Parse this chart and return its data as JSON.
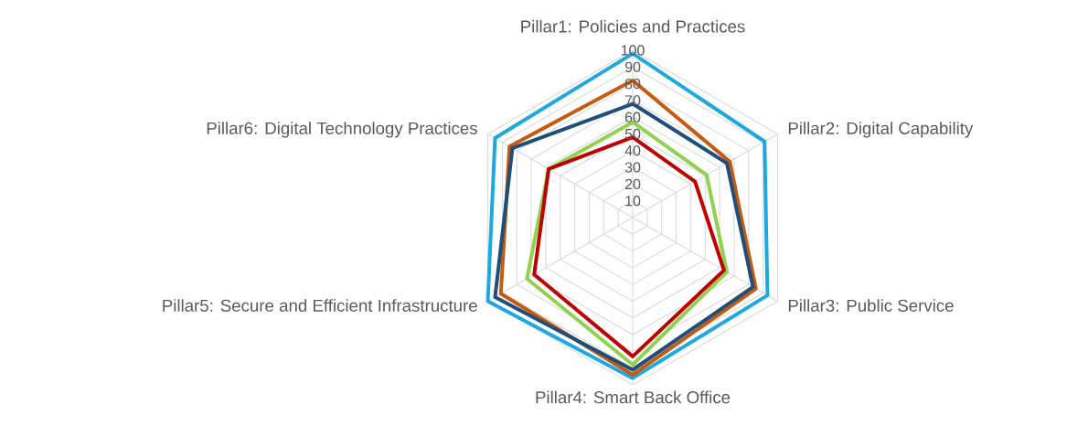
{
  "chart_data": {
    "type": "radar",
    "categories": [
      "Pillar1: Policies and Practices",
      "Pillar2: Digital Capability",
      "Pillar3: Public Service",
      "Pillar4: Smart Back Office",
      "Pillar5: Secure and Efficient Infrastructure",
      "Pillar6: Digital Technology Practices"
    ],
    "series": [
      {
        "color": "#1ea7e1",
        "values": [
          98,
          91,
          93,
          96,
          100,
          95
        ]
      },
      {
        "color": "#c55a11",
        "values": [
          82,
          67,
          85,
          94,
          91,
          85
        ]
      },
      {
        "color": "#1f4e79",
        "values": [
          68,
          65,
          83,
          91,
          95,
          83
        ]
      },
      {
        "color": "#92d050",
        "values": [
          57,
          51,
          65,
          88,
          73,
          58
        ]
      },
      {
        "color": "#c00000",
        "values": [
          48,
          43,
          63,
          83,
          68,
          58
        ]
      }
    ],
    "ylim": [
      0,
      100
    ],
    "yticks": [
      10,
      20,
      30,
      40,
      50,
      60,
      70,
      80,
      90,
      100
    ],
    "grid": true
  }
}
